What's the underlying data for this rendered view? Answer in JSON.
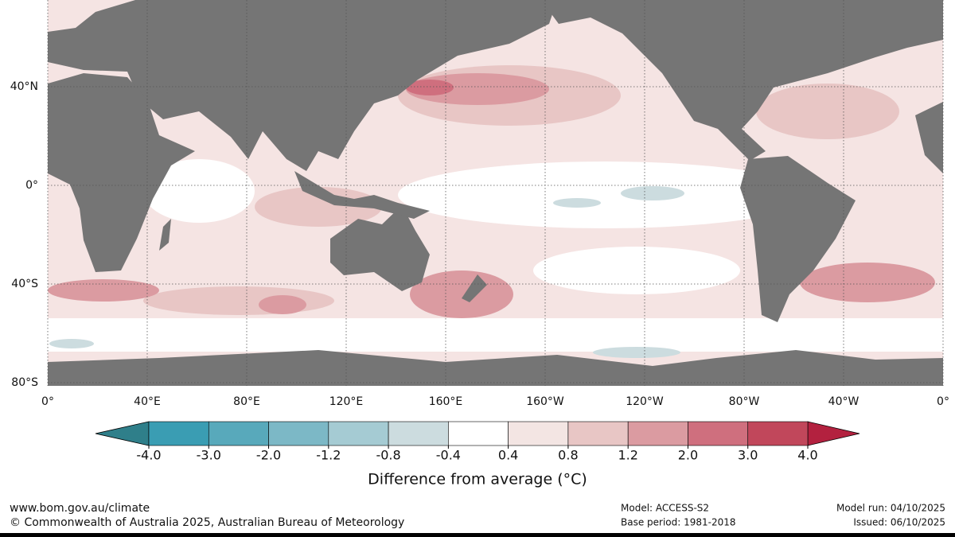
{
  "map": {
    "lat_ticks": [
      {
        "value": 40,
        "label": "40°N"
      },
      {
        "value": 0,
        "label": "0°"
      },
      {
        "value": -40,
        "label": "40°S"
      },
      {
        "value": -80,
        "label": "80°S"
      }
    ],
    "lon_ticks": [
      {
        "value": 0,
        "label": "0°"
      },
      {
        "value": 40,
        "label": "40°E"
      },
      {
        "value": 80,
        "label": "80°E"
      },
      {
        "value": 120,
        "label": "120°E"
      },
      {
        "value": 160,
        "label": "160°E"
      },
      {
        "value": 200,
        "label": "160°W"
      },
      {
        "value": 240,
        "label": "120°W"
      },
      {
        "value": 280,
        "label": "80°W"
      },
      {
        "value": 320,
        "label": "40°W"
      },
      {
        "value": 360,
        "label": "0°"
      }
    ]
  },
  "colorbar": {
    "ticks": [
      {
        "value": -4,
        "label": "-4.0"
      },
      {
        "value": -3,
        "label": "-3.0"
      },
      {
        "value": -2,
        "label": "-2.0"
      },
      {
        "value": -1.2,
        "label": "-1.2"
      },
      {
        "value": -0.8,
        "label": "-0.8"
      },
      {
        "value": -0.4,
        "label": "-0.4"
      },
      {
        "value": 0.4,
        "label": "0.4"
      },
      {
        "value": 0.8,
        "label": "0.8"
      },
      {
        "value": 1.2,
        "label": "1.2"
      },
      {
        "value": 2,
        "label": "2.0"
      },
      {
        "value": 3,
        "label": "3.0"
      },
      {
        "value": 4,
        "label": "4.0"
      }
    ],
    "colors": [
      "#2f7f8a",
      "#3a9db3",
      "#58a9bb",
      "#7cb8c6",
      "#a5cbd3",
      "#ccdcdf",
      "#ffffff",
      "#f3e5e3",
      "#e8c6c5",
      "#db9ba1",
      "#cf6f7e",
      "#c1475b",
      "#b3213f"
    ],
    "label": "Difference from average (°C)"
  },
  "footer": {
    "url": "www.bom.gov.au/climate",
    "copyright": "© Commonwealth of Australia 2025, Australian Bureau of Meteorology",
    "model": "Model: ACCESS-S2",
    "base_period": "Base period: 1981-2018",
    "model_run": "Model run: 04/10/2025",
    "issued": "Issued: 06/10/2025"
  }
}
